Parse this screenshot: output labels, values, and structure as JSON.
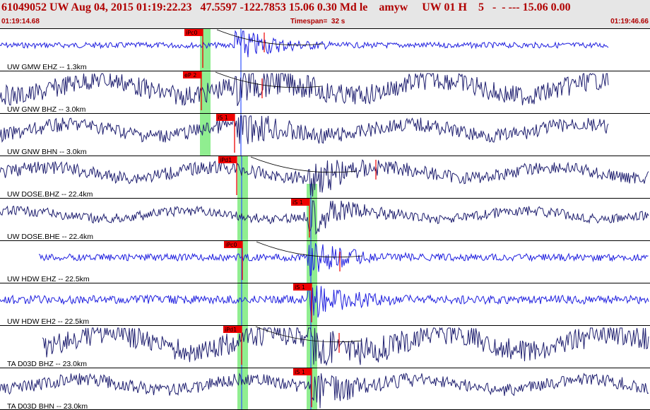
{
  "header": {
    "title": "61049052 UW Aug 04, 2015 01:19:22.23   47.5597 -122.7853 15.06 0.30 Md le    amyw     UW 01 H    5   -  - --- 15.06 0.00",
    "start_time": "01:19:14.68",
    "timespan": "Timespan=  32 s",
    "end_time": "01:19:46.66"
  },
  "colors": {
    "trace_velocity": "#1f1fdf",
    "trace_broadband": "#202070",
    "pick": "#ee0000",
    "highlight": "#90ee90",
    "header_text": "#b00000"
  },
  "channels": [
    {
      "label": "UW GMW EHZ -- 1.3km",
      "pick": "iPc0",
      "trace": "velocity"
    },
    {
      "label": "UW GNW BHZ -- 3.0km",
      "pick": "eP 2",
      "trace": "broadband"
    },
    {
      "label": "UW GNW BHN -- 3.0km",
      "pick": "iS 1",
      "trace": "broadband"
    },
    {
      "label": "UW DOSE.BHZ -- 22.4km",
      "pick": "iPd1",
      "trace": "broadband"
    },
    {
      "label": "UW DOSE.BHE -- 22.4km",
      "pick": "iS 1",
      "trace": "broadband"
    },
    {
      "label": "UW HDW EHZ -- 22.5km",
      "pick": "iPc0",
      "trace": "velocity"
    },
    {
      "label": "UW HDW EH2 -- 22.5km",
      "pick": "iS 1",
      "trace": "velocity"
    },
    {
      "label": "TA D03D BHZ -- 23.0km",
      "pick": "iPd1",
      "trace": "broadband"
    },
    {
      "label": "TA D03D BHN -- 23.0km",
      "pick": "iS 1",
      "trace": "broadband"
    }
  ]
}
